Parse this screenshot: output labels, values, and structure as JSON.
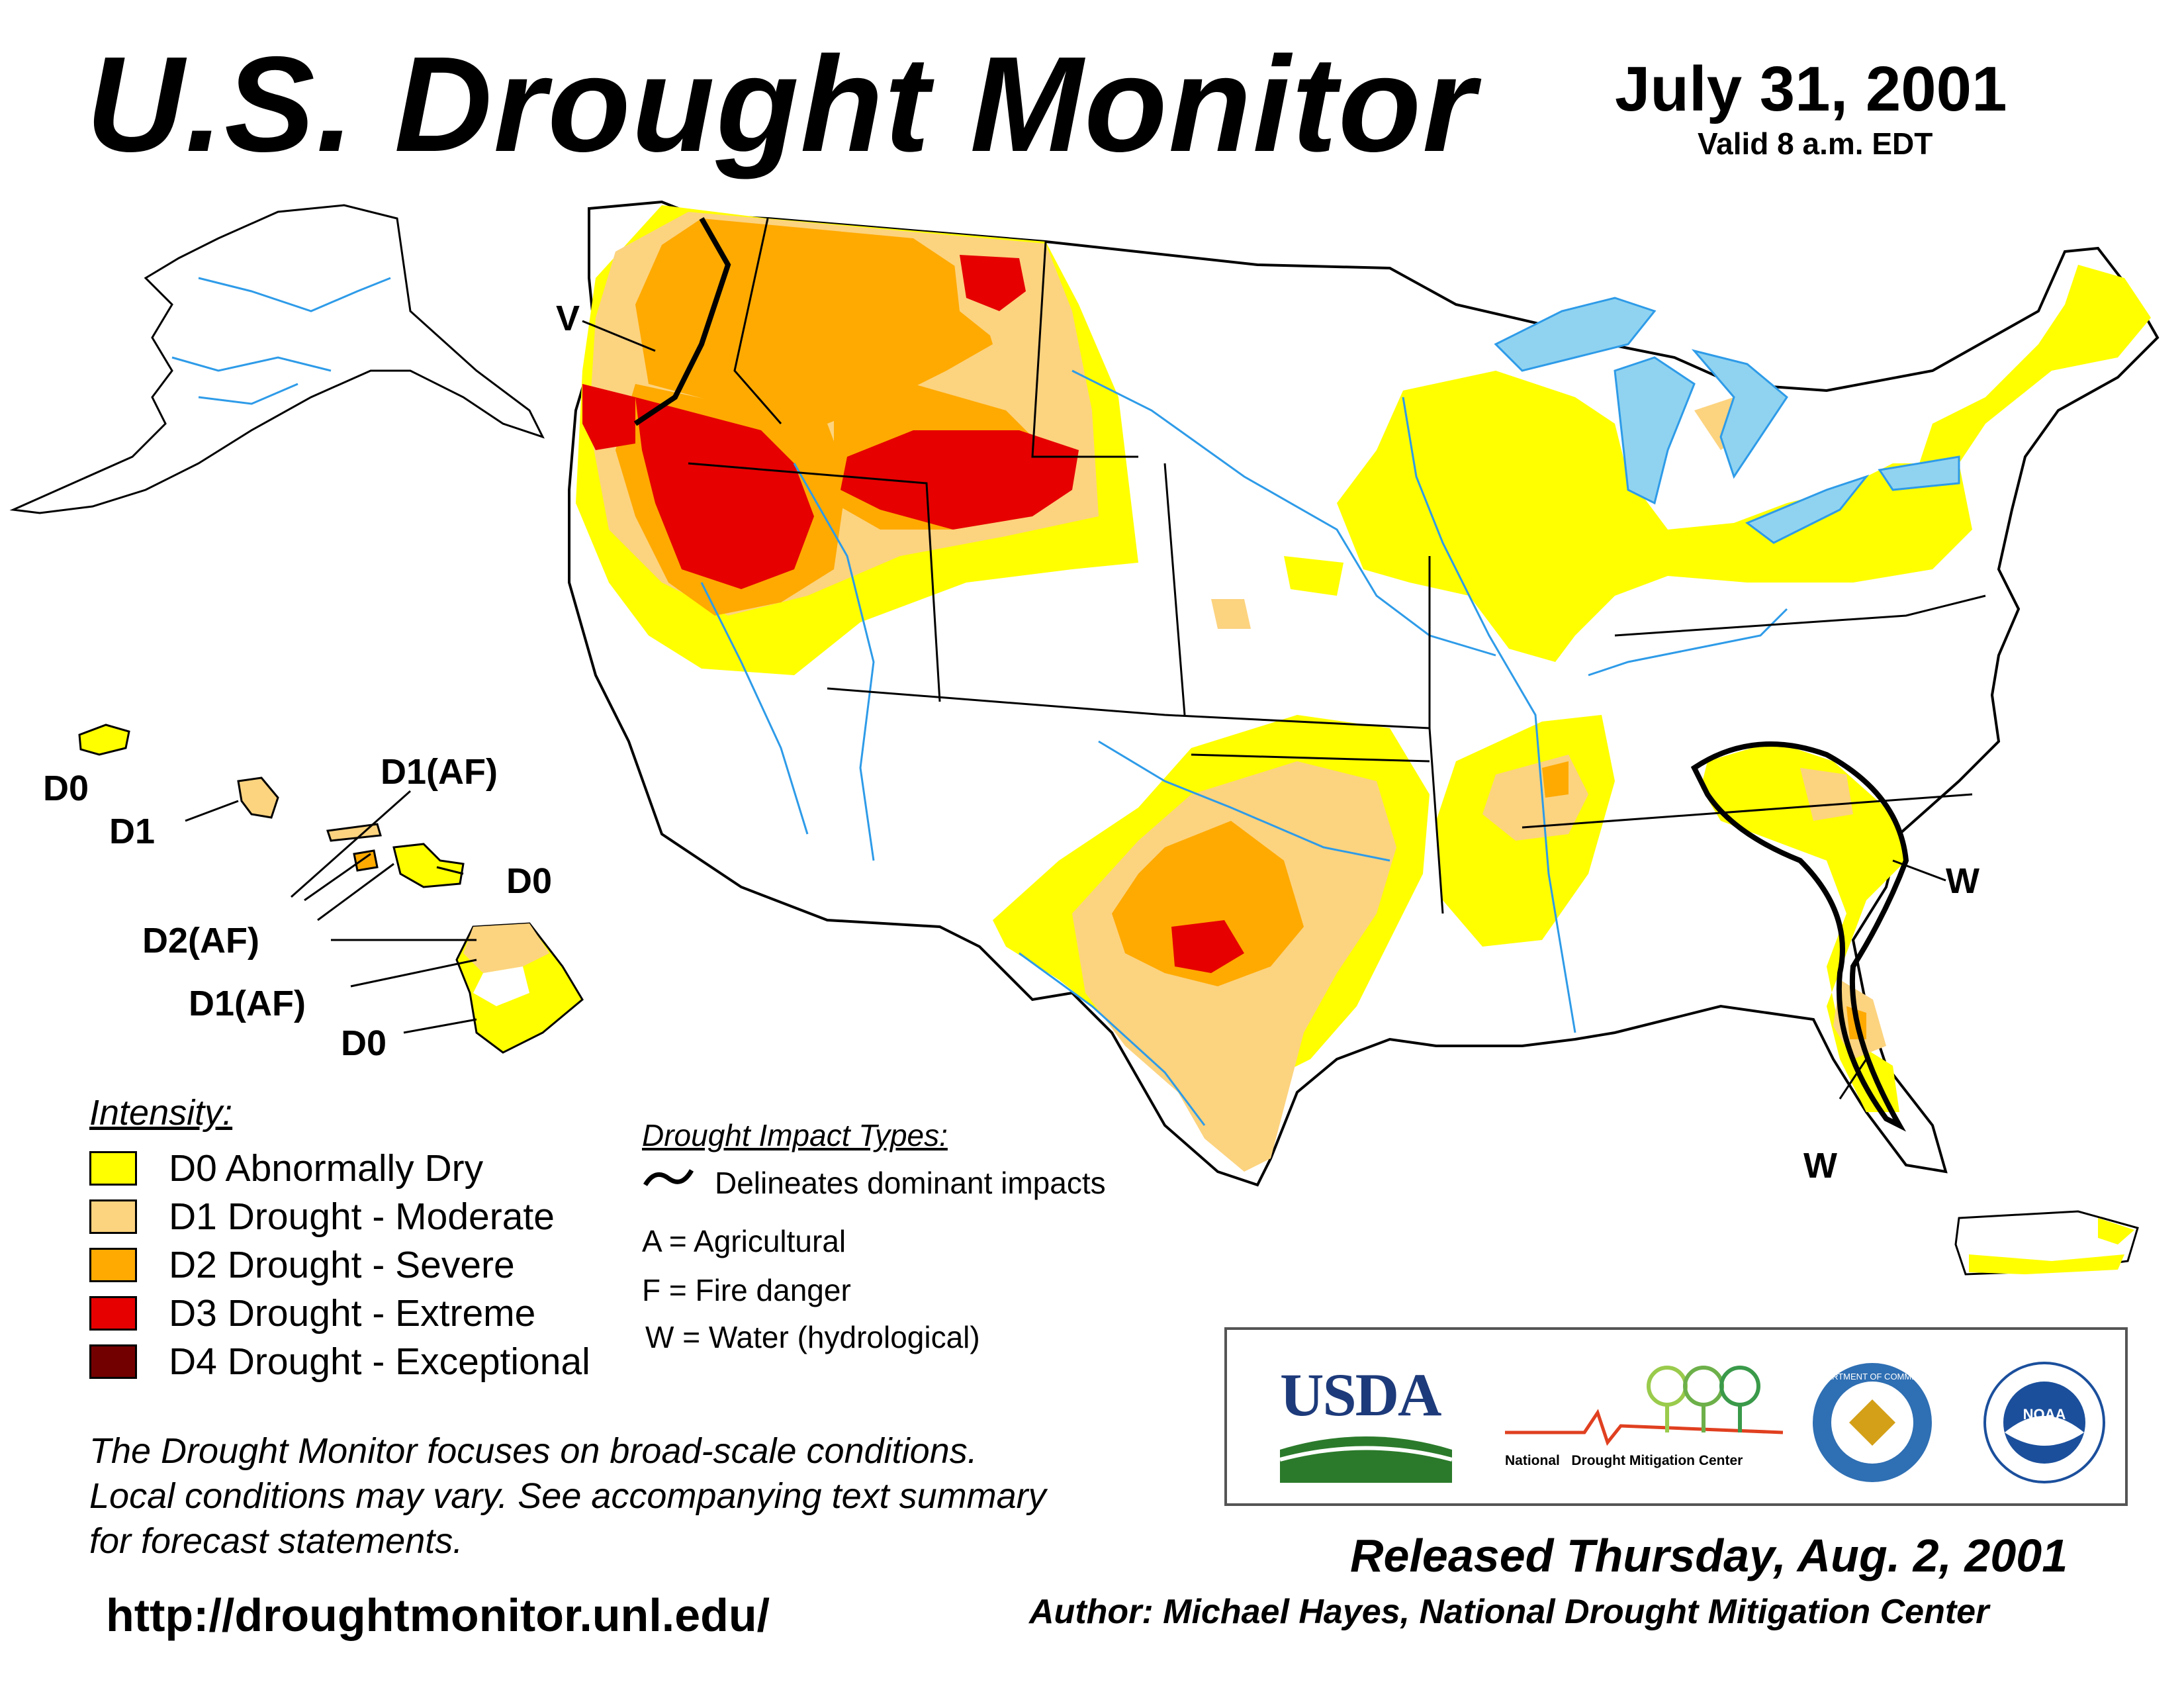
{
  "header": {
    "title": "U.S. Drought Monitor",
    "date": "July 31, 2001",
    "valid": "Valid 8 a.m. EDT"
  },
  "map_labels": {
    "west_coast_v": "V",
    "alaska_hawaii": {
      "kauai": "D0",
      "oahu": "D1",
      "molokai": "D1(AF)",
      "maui": "D0",
      "lanai": "D2(AF)",
      "big_island_north": "D1(AF)",
      "big_island_south": "D0"
    },
    "southeast_w": "W",
    "florida_w": "W"
  },
  "legend": {
    "heading": "Intensity:",
    "items": [
      {
        "label": "D0 Abnormally Dry",
        "color": "#FFFF00"
      },
      {
        "label": "D1 Drought - Moderate",
        "color": "#FCD37F"
      },
      {
        "label": "D2 Drought - Severe",
        "color": "#FFAA00"
      },
      {
        "label": "D3 Drought - Extreme",
        "color": "#E60000"
      },
      {
        "label": "D4 Drought - Exceptional",
        "color": "#730000"
      }
    ]
  },
  "impacts": {
    "heading": "Drought Impact Types:",
    "delineates": "Delineates dominant impacts",
    "a": "A = Agricultural",
    "f": "F = Fire danger",
    "w": "W = Water (hydrological)"
  },
  "disclaimer": {
    "line1": "The Drought Monitor focuses on broad-scale conditions.",
    "line2": "Local conditions may vary. See accompanying text summary",
    "line3": "for forecast statements."
  },
  "url": "http://droughtmonitor.unl.edu/",
  "logos": {
    "usda": "USDA",
    "ndmc": "National Drought Mitigation Center",
    "ndmc_a": "National",
    "ndmc_b": "Drought Mitigation Center",
    "commerce": "DEPARTMENT OF COMMERCE",
    "noaa": "NOAA"
  },
  "footer": {
    "released": "Released Thursday, Aug. 2, 2001",
    "author": "Author: Michael Hayes, National Drought Mitigation Center"
  },
  "colors": {
    "water": "#90D3F0",
    "river": "#2E9BE8",
    "county": "#A0A0A0"
  }
}
